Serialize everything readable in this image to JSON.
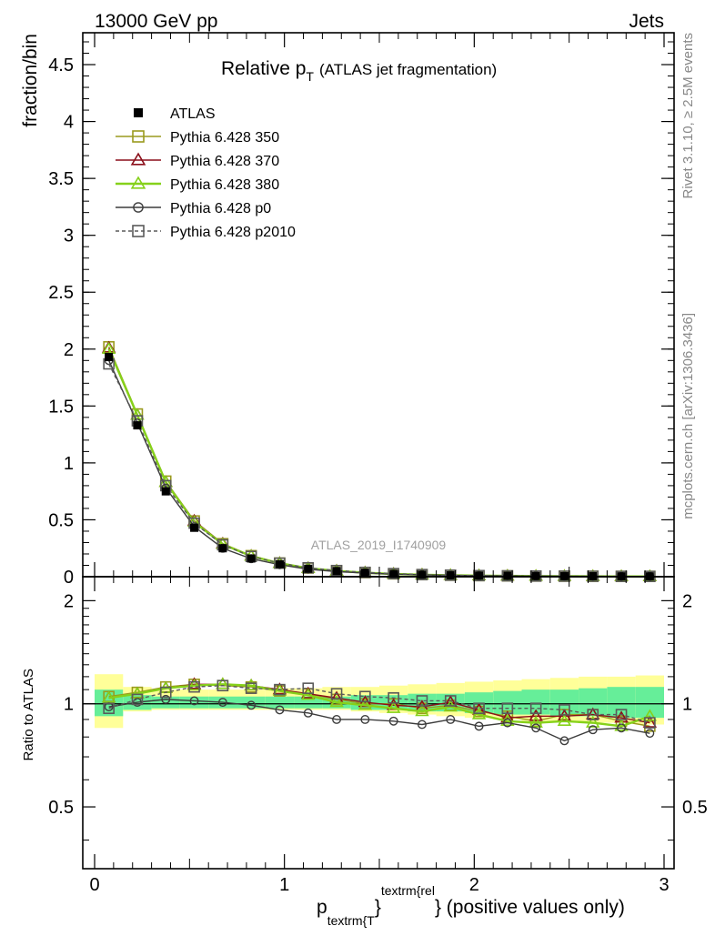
{
  "header": {
    "left": "13000 GeV pp",
    "right": "Jets"
  },
  "title": {
    "main": "Relative p",
    "sub": "T",
    "suffix": "(ATLAS jet fragmentation)"
  },
  "side_labels": {
    "rivet": "Rivet 3.1.10, ≥ 2.5M events",
    "mcplots": "mcplots.cern.ch [arXiv:1306.3436]"
  },
  "analysis_label": "ATLAS_2019_I1740909",
  "axes": {
    "ylabel_main": "fraction/bin",
    "ylabel_ratio": "Ratio to ATLAS",
    "xlabel_p": "p",
    "xlabel_sub": "textrm{T",
    "xlabel_sup": "textrm{rel",
    "xlabel_tail": "} (positive values only)",
    "main_yticks": [
      "0",
      "0.5",
      "1",
      "1.5",
      "2",
      "2.5",
      "3",
      "3.5",
      "4",
      "4.5"
    ],
    "ratio_yticks": [
      "0.5",
      "1",
      "2"
    ],
    "xticks": [
      "0",
      "1",
      "2",
      "3"
    ]
  },
  "colors": {
    "atlas": "#000000",
    "p350": "#9a9a1e",
    "p370": "#8b0f1a",
    "p380": "#86d11a",
    "p0": "#3c3c3c",
    "p2010": "#5a5a5a",
    "band_yellow": "#ffff99",
    "band_green": "#66ee99"
  },
  "chart_data": {
    "type": "line",
    "x_label": "p_textrm{T}^{textrm{rel}} (positive values only)",
    "y_label": "fraction/bin",
    "xlim": [
      -0.1,
      3.05
    ],
    "ylim_main": [
      0,
      4.78
    ],
    "ylim_ratio": [
      0.33,
      2.35
    ],
    "ratio_log_scale": true,
    "x": [
      0.075,
      0.225,
      0.375,
      0.525,
      0.675,
      0.825,
      0.975,
      1.125,
      1.275,
      1.425,
      1.575,
      1.725,
      1.875,
      2.025,
      2.175,
      2.325,
      2.475,
      2.625,
      2.775,
      2.925
    ],
    "atlas": {
      "name": "ATLAS",
      "values": [
        1.93,
        1.33,
        0.75,
        0.43,
        0.25,
        0.16,
        0.11,
        0.07,
        0.05,
        0.035,
        0.025,
        0.018,
        0.013,
        0.01,
        0.008,
        0.006,
        0.005,
        0.004,
        0.003,
        0.003
      ],
      "band_yellow": [
        [
          0.85,
          1.22
        ],
        [
          0.95,
          1.12
        ],
        [
          0.96,
          1.1
        ],
        [
          0.96,
          1.1
        ],
        [
          0.96,
          1.1
        ],
        [
          0.96,
          1.1
        ],
        [
          0.96,
          1.11
        ],
        [
          0.96,
          1.11
        ],
        [
          0.96,
          1.12
        ],
        [
          0.95,
          1.12
        ],
        [
          0.94,
          1.13
        ],
        [
          0.93,
          1.14
        ],
        [
          0.92,
          1.15
        ],
        [
          0.91,
          1.16
        ],
        [
          0.9,
          1.17
        ],
        [
          0.89,
          1.18
        ],
        [
          0.89,
          1.19
        ],
        [
          0.88,
          1.2
        ],
        [
          0.88,
          1.2
        ],
        [
          0.87,
          1.21
        ]
      ],
      "band_green": [
        [
          0.92,
          1.1
        ],
        [
          0.96,
          1.06
        ],
        [
          0.97,
          1.05
        ],
        [
          0.97,
          1.05
        ],
        [
          0.97,
          1.05
        ],
        [
          0.97,
          1.05
        ],
        [
          0.97,
          1.05
        ],
        [
          0.97,
          1.05
        ],
        [
          0.97,
          1.05
        ],
        [
          0.96,
          1.06
        ],
        [
          0.96,
          1.06
        ],
        [
          0.95,
          1.07
        ],
        [
          0.95,
          1.07
        ],
        [
          0.94,
          1.08
        ],
        [
          0.93,
          1.09
        ],
        [
          0.93,
          1.1
        ],
        [
          0.92,
          1.1
        ],
        [
          0.92,
          1.11
        ],
        [
          0.91,
          1.12
        ],
        [
          0.91,
          1.12
        ]
      ]
    },
    "series": [
      {
        "name": "Pythia 6.428 350",
        "key": "p350",
        "marker": "square",
        "dashed": false,
        "values": [
          2.02,
          1.43,
          0.84,
          0.49,
          0.29,
          0.185,
          0.12,
          0.076,
          0.052,
          0.036,
          0.025,
          0.018,
          0.013,
          0.0095,
          0.0075,
          0.0055,
          0.0045,
          0.0036,
          0.0028,
          0.0027
        ],
        "ratio": [
          1.05,
          1.08,
          1.12,
          1.14,
          1.13,
          1.12,
          1.09,
          1.07,
          1.03,
          1.0,
          1.0,
          0.97,
          0.99,
          0.95,
          0.92,
          0.89,
          0.93,
          0.93,
          0.89,
          0.86
        ]
      },
      {
        "name": "Pythia 6.428 370",
        "key": "p370",
        "marker": "triangle",
        "dashed": false,
        "values": [
          2.01,
          1.42,
          0.83,
          0.49,
          0.29,
          0.183,
          0.119,
          0.075,
          0.052,
          0.036,
          0.025,
          0.0175,
          0.0132,
          0.0096,
          0.0074,
          0.0055,
          0.0046,
          0.0037,
          0.0027,
          0.0026
        ],
        "ratio": [
          1.04,
          1.07,
          1.11,
          1.14,
          1.14,
          1.13,
          1.1,
          1.07,
          1.04,
          1.01,
          0.99,
          0.98,
          1.01,
          0.96,
          0.91,
          0.92,
          0.92,
          0.93,
          0.91,
          0.88
        ]
      },
      {
        "name": "Pythia 6.428 380",
        "key": "p380",
        "marker": "triangle",
        "dashed": false,
        "values": [
          2.0,
          1.42,
          0.83,
          0.48,
          0.285,
          0.181,
          0.118,
          0.074,
          0.051,
          0.035,
          0.024,
          0.0172,
          0.0128,
          0.0093,
          0.0071,
          0.0053,
          0.0045,
          0.0036,
          0.0026,
          0.0027
        ],
        "ratio": [
          1.04,
          1.07,
          1.11,
          1.13,
          1.14,
          1.13,
          1.09,
          1.06,
          1.01,
          0.99,
          0.97,
          0.95,
          0.98,
          0.93,
          0.89,
          0.88,
          0.89,
          0.88,
          0.86,
          0.92
        ]
      },
      {
        "name": "Pythia 6.428 p0",
        "key": "p0",
        "marker": "circle",
        "dashed": false,
        "values": [
          1.9,
          1.35,
          0.78,
          0.44,
          0.25,
          0.158,
          0.105,
          0.066,
          0.045,
          0.032,
          0.0225,
          0.016,
          0.0118,
          0.0087,
          0.0071,
          0.0052,
          0.0039,
          0.0034,
          0.0026,
          0.0025
        ],
        "ratio": [
          0.98,
          1.01,
          1.03,
          1.02,
          1.01,
          0.99,
          0.96,
          0.94,
          0.9,
          0.9,
          0.89,
          0.87,
          0.9,
          0.86,
          0.88,
          0.85,
          0.78,
          0.84,
          0.85,
          0.82
        ]
      },
      {
        "name": "Pythia 6.428 p2010",
        "key": "p2010",
        "marker": "square",
        "dashed": true,
        "values": [
          1.87,
          1.37,
          0.8,
          0.47,
          0.28,
          0.178,
          0.119,
          0.078,
          0.054,
          0.038,
          0.027,
          0.0185,
          0.0133,
          0.0097,
          0.0077,
          0.0058,
          0.0048,
          0.0037,
          0.0028,
          0.0026
        ],
        "ratio": [
          0.97,
          1.03,
          1.08,
          1.12,
          1.13,
          1.11,
          1.1,
          1.11,
          1.07,
          1.05,
          1.04,
          1.02,
          1.02,
          0.97,
          0.97,
          0.97,
          0.96,
          0.93,
          0.93,
          0.88
        ]
      }
    ]
  }
}
